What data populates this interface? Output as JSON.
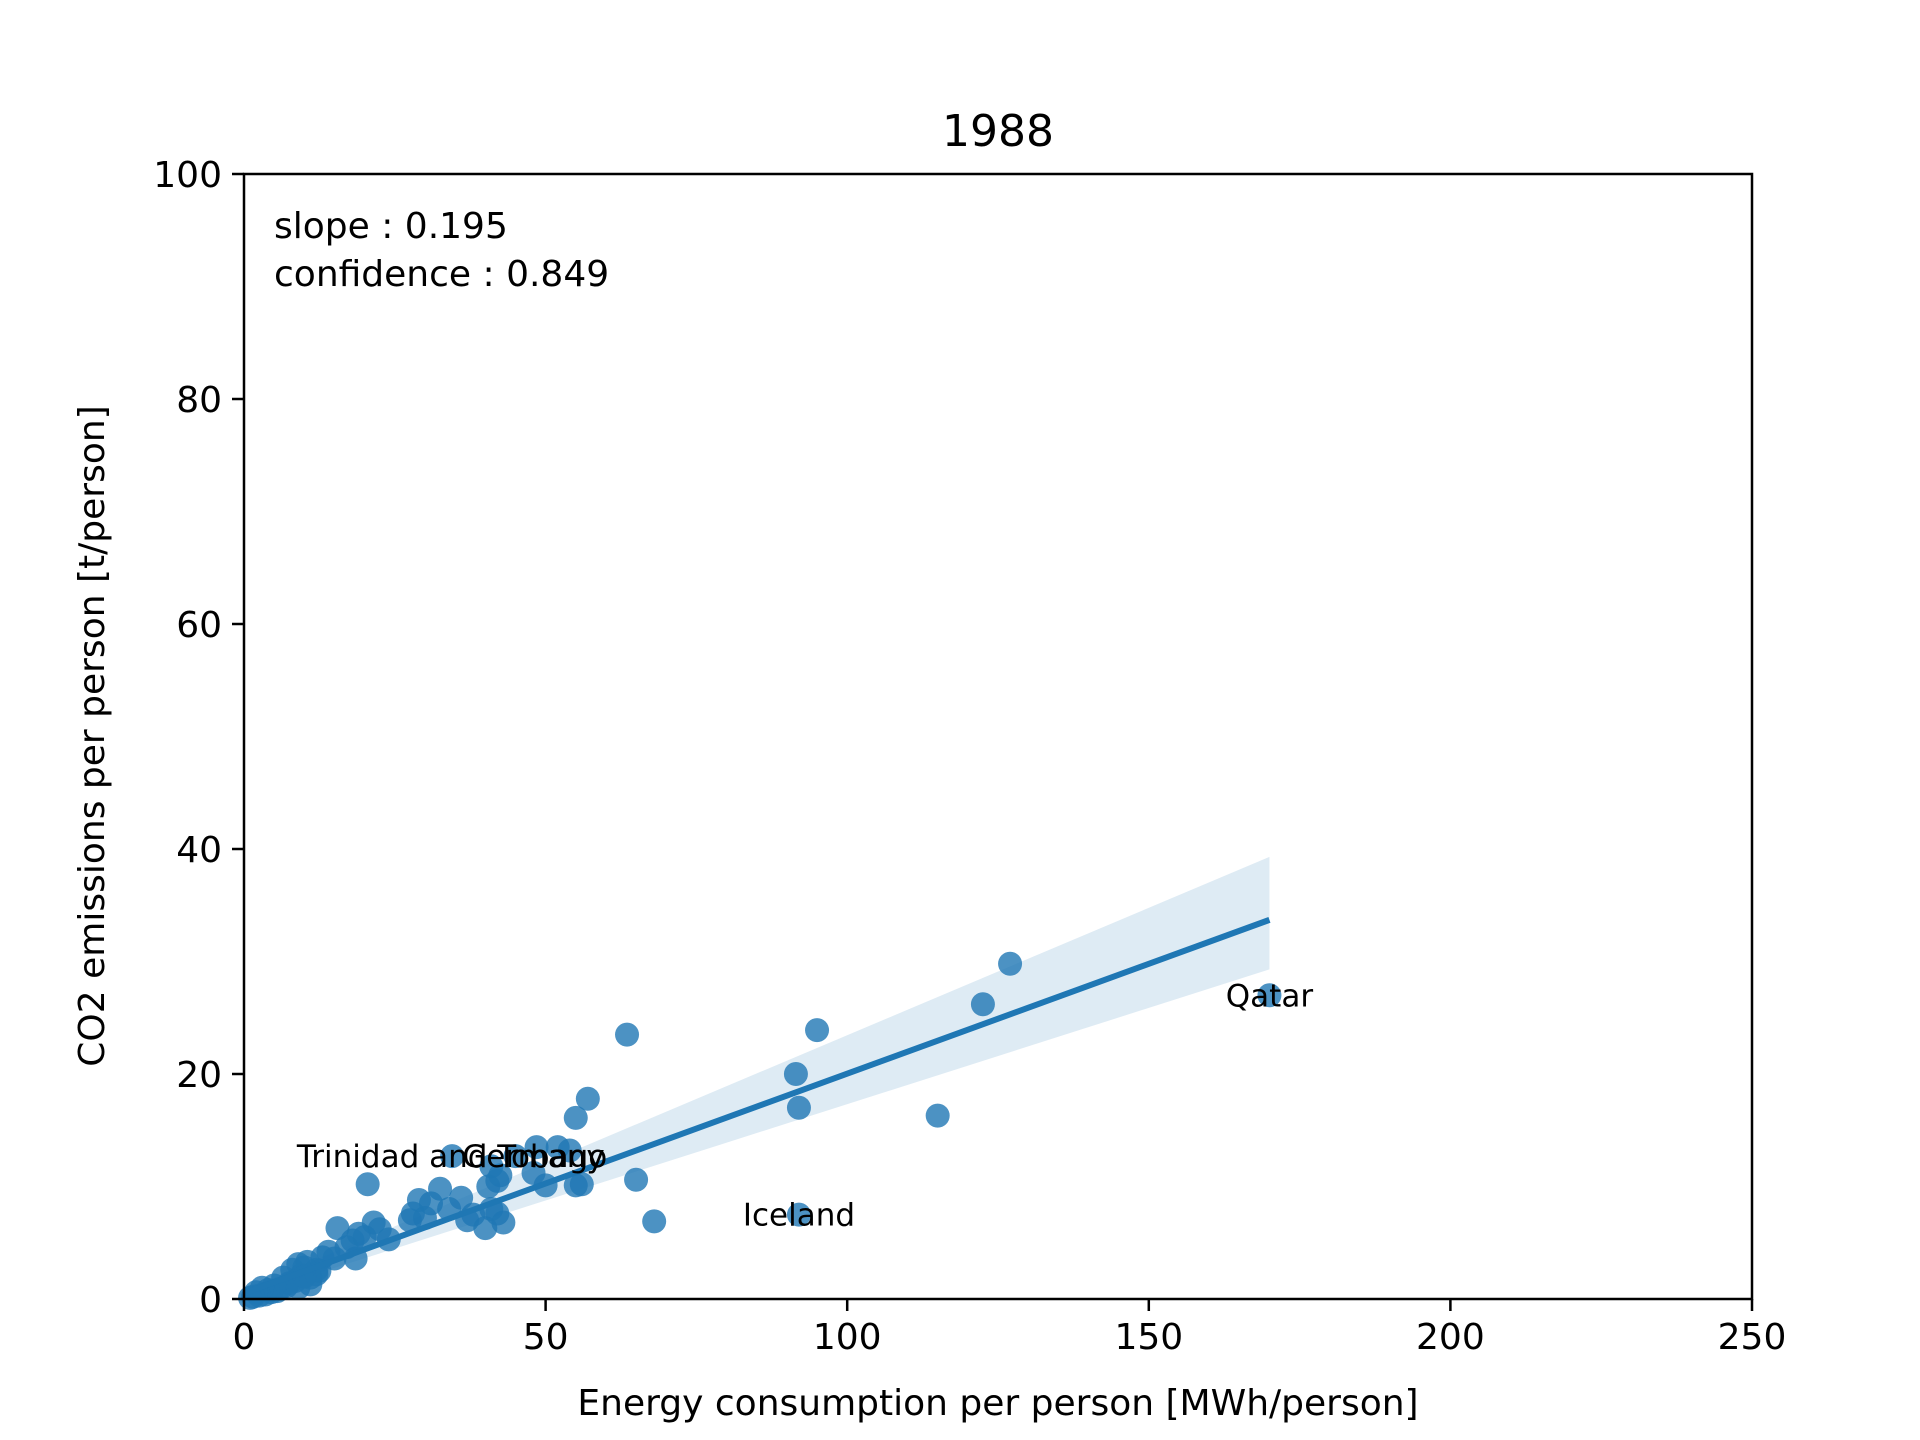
{
  "chart_data": {
    "type": "scatter",
    "title": "1988",
    "xlabel": "Energy consumption per person [MWh/person]",
    "ylabel": "CO2 emissions per person [t/person]",
    "xlim": [
      0,
      250
    ],
    "ylim": [
      0,
      100
    ],
    "xticks": [
      "0",
      "50",
      "100",
      "150",
      "200",
      "250"
    ],
    "yticks": [
      "0",
      "20",
      "40",
      "60",
      "80",
      "100"
    ],
    "grid": false,
    "annotation_lines": [
      "slope : 0.195",
      "confidence : 0.849"
    ],
    "regression": {
      "x": [
        0,
        170
      ],
      "y": [
        0.5,
        33.7
      ],
      "ci_lower": [
        0.2,
        29.3
      ],
      "ci_upper": [
        0.8,
        39.3
      ]
    },
    "colors": {
      "points": "#1f77b4",
      "line": "#1f77b4",
      "ci_band": "#1f77b4"
    },
    "labeled_points": [
      {
        "name": "Qatar",
        "x": 170,
        "y": 27
      },
      {
        "name": "Iceland",
        "x": 92,
        "y": 7.5
      },
      {
        "name": "Trinidad and Tobago",
        "x": 34.5,
        "y": 12.7
      },
      {
        "name": "Germany",
        "x": 48,
        "y": 12.7
      }
    ],
    "points": [
      [
        170,
        27
      ],
      [
        127,
        29.8
      ],
      [
        122.5,
        26.2
      ],
      [
        115,
        16.3
      ],
      [
        95,
        23.9
      ],
      [
        91.5,
        20
      ],
      [
        92,
        17
      ],
      [
        92,
        7.5
      ],
      [
        63.5,
        23.5
      ],
      [
        68,
        6.9
      ],
      [
        65,
        10.6
      ],
      [
        57,
        17.8
      ],
      [
        55,
        16.1
      ],
      [
        56,
        10.2
      ],
      [
        55,
        10.1
      ],
      [
        54,
        13.2
      ],
      [
        52,
        13.5
      ],
      [
        48.5,
        13.5
      ],
      [
        48,
        11.2
      ],
      [
        50,
        10.1
      ],
      [
        45,
        12.7
      ],
      [
        42.5,
        11
      ],
      [
        41,
        11.8
      ],
      [
        40.5,
        10
      ],
      [
        41,
        8
      ],
      [
        42,
        10.5
      ],
      [
        43,
        6.8
      ],
      [
        40,
        6.3
      ],
      [
        42,
        7.6
      ],
      [
        38,
        7.5
      ],
      [
        37,
        7
      ],
      [
        36,
        9
      ],
      [
        34.5,
        12.7
      ],
      [
        34,
        8
      ],
      [
        32.5,
        9.8
      ],
      [
        31,
        8.5
      ],
      [
        30,
        7.2
      ],
      [
        29,
        8.8
      ],
      [
        28,
        7.6
      ],
      [
        27.5,
        7
      ],
      [
        24,
        5.3
      ],
      [
        22.5,
        6.2
      ],
      [
        21.5,
        6.8
      ],
      [
        20.5,
        10.2
      ],
      [
        20,
        5.5
      ],
      [
        19,
        5.8
      ],
      [
        18.5,
        3.6
      ],
      [
        18,
        5.2
      ],
      [
        17,
        4.6
      ],
      [
        15.5,
        6.3
      ],
      [
        15,
        3.6
      ],
      [
        14,
        4.2
      ],
      [
        13,
        3.7
      ],
      [
        12.5,
        2.5
      ],
      [
        12,
        2.6
      ],
      [
        11,
        1.9
      ],
      [
        10.5,
        3.3
      ],
      [
        10,
        2.8
      ],
      [
        9.5,
        2.1
      ],
      [
        9,
        3.1
      ],
      [
        8.5,
        1.6
      ],
      [
        8,
        2.6
      ],
      [
        7.5,
        1.4
      ],
      [
        7,
        1.1
      ],
      [
        6.5,
        1.9
      ],
      [
        6,
        0.9
      ],
      [
        5.5,
        0.7
      ],
      [
        5,
        1.2
      ],
      [
        4.5,
        0.6
      ],
      [
        4,
        0.8
      ],
      [
        3.5,
        0.4
      ],
      [
        3,
        1
      ],
      [
        2.5,
        0.3
      ],
      [
        2,
        0.6
      ],
      [
        1.5,
        0.2
      ],
      [
        1,
        0.1
      ],
      [
        11,
        1.3
      ],
      [
        9,
        1
      ],
      [
        10,
        2
      ],
      [
        12,
        2.2
      ]
    ]
  }
}
